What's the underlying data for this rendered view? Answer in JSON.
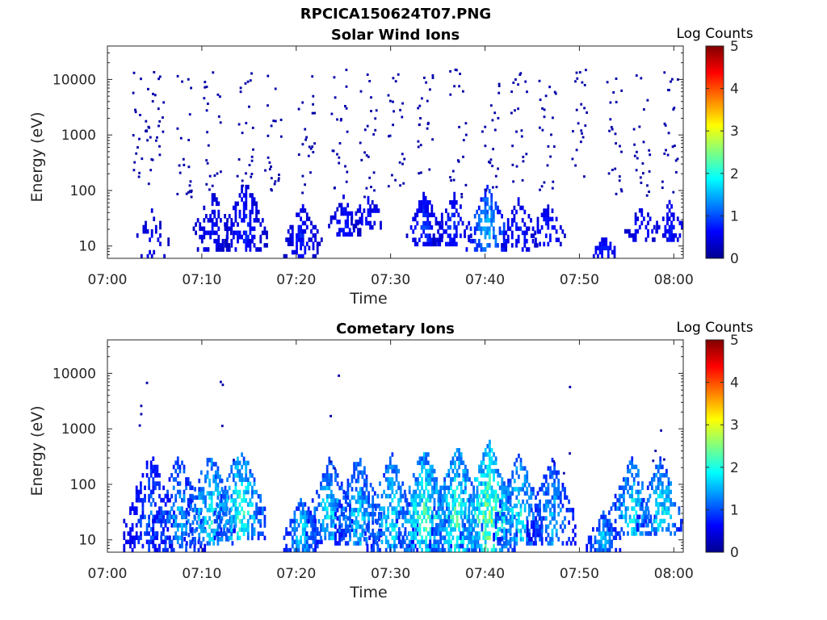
{
  "figure": {
    "title": "RPCICA150624T07.PNG"
  },
  "chart_data": [
    {
      "type": "heatmap",
      "title": "Solar Wind Ions",
      "xlabel": "Time",
      "ylabel": "Energy (eV)",
      "x_range": [
        "07:00",
        "08:01"
      ],
      "x_ticks": [
        "07:00",
        "07:10",
        "07:20",
        "07:30",
        "07:40",
        "07:50",
        "08:00"
      ],
      "y_scale": "log",
      "ylim": [
        6,
        40000
      ],
      "y_ticks": [
        "10",
        "100",
        "1000",
        "10000"
      ],
      "colorbar": {
        "label": "Log Counts",
        "min": 0,
        "max": 5,
        "ticks": [
          "0",
          "1",
          "2",
          "3",
          "4",
          "5"
        ]
      },
      "bursts": [
        {
          "time": "07:04.5",
          "e_lo": 6,
          "e_hi": 60,
          "peak": 0.6,
          "density": 0.25
        },
        {
          "time": "07:11",
          "e_lo": 8,
          "e_hi": 100,
          "peak": 0.7,
          "density": 0.5
        },
        {
          "time": "07:14.5",
          "e_lo": 8,
          "e_hi": 150,
          "peak": 0.8,
          "density": 0.55
        },
        {
          "time": "07:20.5",
          "e_lo": 6,
          "e_hi": 60,
          "peak": 0.8,
          "density": 0.6
        },
        {
          "time": "07:25",
          "e_lo": 15,
          "e_hi": 80,
          "peak": 0.8,
          "density": 0.5
        },
        {
          "time": "07:27.5",
          "e_lo": 20,
          "e_hi": 80,
          "peak": 0.8,
          "density": 0.45
        },
        {
          "time": "07:33.5",
          "e_lo": 10,
          "e_hi": 100,
          "peak": 0.9,
          "density": 0.55
        },
        {
          "time": "07:36.5",
          "e_lo": 10,
          "e_hi": 90,
          "peak": 0.9,
          "density": 0.55
        },
        {
          "time": "07:40.2",
          "e_lo": 8,
          "e_hi": 120,
          "peak": 1.6,
          "density": 0.5
        },
        {
          "time": "07:43.5",
          "e_lo": 8,
          "e_hi": 70,
          "peak": 0.8,
          "density": 0.45
        },
        {
          "time": "07:46.5",
          "e_lo": 10,
          "e_hi": 60,
          "peak": 0.8,
          "density": 0.45
        },
        {
          "time": "07:52.5",
          "e_lo": 6,
          "e_hi": 14,
          "peak": 0.9,
          "density": 0.8
        },
        {
          "time": "07:56.5",
          "e_lo": 12,
          "e_hi": 50,
          "peak": 0.8,
          "density": 0.5
        },
        {
          "time": "07:59.5",
          "e_lo": 12,
          "e_hi": 60,
          "peak": 0.8,
          "density": 0.5
        }
      ],
      "scatter_spikes": [
        "07:03.5",
        "07:05",
        "07:08",
        "07:11",
        "07:14.5",
        "07:17.5",
        "07:21",
        "07:24.5",
        "07:27.5",
        "07:30.5",
        "07:33.5",
        "07:37",
        "07:40.5",
        "07:43.5",
        "07:46.5",
        "07:50",
        "07:53.5",
        "07:56.5",
        "07:59.5"
      ]
    },
    {
      "type": "heatmap",
      "title": "Cometary Ions",
      "xlabel": "Time",
      "ylabel": "Energy (eV)",
      "x_range": [
        "07:00",
        "08:01"
      ],
      "x_ticks": [
        "07:00",
        "07:10",
        "07:20",
        "07:30",
        "07:40",
        "07:50",
        "08:00"
      ],
      "y_scale": "log",
      "ylim": [
        6,
        40000
      ],
      "y_ticks": [
        "10",
        "100",
        "1000",
        "10000"
      ],
      "colorbar": {
        "label": "Log Counts",
        "min": 0,
        "max": 5,
        "ticks": [
          "0",
          "1",
          "2",
          "3",
          "4",
          "5"
        ]
      },
      "bursts": [
        {
          "time": "07:04.5",
          "e_lo": 6,
          "e_hi": 400,
          "peak": 1.2,
          "density": 0.45
        },
        {
          "time": "07:07.5",
          "e_lo": 6,
          "e_hi": 350,
          "peak": 1.6,
          "density": 0.5
        },
        {
          "time": "07:10.8",
          "e_lo": 8,
          "e_hi": 400,
          "peak": 2.0,
          "density": 0.55
        },
        {
          "time": "07:14",
          "e_lo": 10,
          "e_hi": 500,
          "peak": 2.2,
          "density": 0.6
        },
        {
          "time": "07:20.5",
          "e_lo": 6,
          "e_hi": 60,
          "peak": 1.8,
          "density": 0.7
        },
        {
          "time": "07:23.5",
          "e_lo": 10,
          "e_hi": 300,
          "peak": 1.9,
          "density": 0.6
        },
        {
          "time": "07:26.5",
          "e_lo": 8,
          "e_hi": 350,
          "peak": 1.8,
          "density": 0.6
        },
        {
          "time": "07:30",
          "e_lo": 6,
          "e_hi": 350,
          "peak": 1.9,
          "density": 0.6
        },
        {
          "time": "07:33.5",
          "e_lo": 6,
          "e_hi": 500,
          "peak": 2.3,
          "density": 0.65
        },
        {
          "time": "07:37",
          "e_lo": 6,
          "e_hi": 500,
          "peak": 2.3,
          "density": 0.65
        },
        {
          "time": "07:40.3",
          "e_lo": 6,
          "e_hi": 600,
          "peak": 2.6,
          "density": 0.65
        },
        {
          "time": "07:43.5",
          "e_lo": 8,
          "e_hi": 350,
          "peak": 2.0,
          "density": 0.55
        },
        {
          "time": "07:47",
          "e_lo": 8,
          "e_hi": 300,
          "peak": 1.6,
          "density": 0.5
        },
        {
          "time": "07:52.5",
          "e_lo": 6,
          "e_hi": 30,
          "peak": 1.8,
          "density": 0.8
        },
        {
          "time": "07:55.5",
          "e_lo": 12,
          "e_hi": 300,
          "peak": 2.0,
          "density": 0.55
        },
        {
          "time": "07:58.5",
          "e_lo": 12,
          "e_hi": 300,
          "peak": 2.0,
          "density": 0.55
        }
      ],
      "scatter_spikes": [
        "07:04",
        "07:12.5",
        "07:24.3",
        "07:48",
        "07:58.5"
      ]
    }
  ]
}
